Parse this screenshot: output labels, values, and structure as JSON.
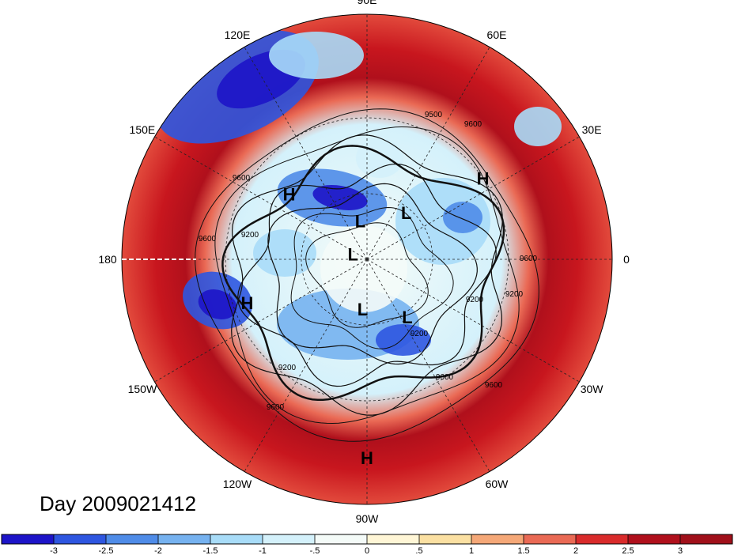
{
  "title": "Day 2009021412",
  "longitude_labels": [
    {
      "text": "90E",
      "lon": 90
    },
    {
      "text": "60E",
      "lon": 60
    },
    {
      "text": "30E",
      "lon": 30
    },
    {
      "text": "0",
      "lon": 0
    },
    {
      "text": "30W",
      "lon": -30
    },
    {
      "text": "60W",
      "lon": -60
    },
    {
      "text": "90W",
      "lon": -90
    },
    {
      "text": "120W",
      "lon": -120
    },
    {
      "text": "150W",
      "lon": -150
    },
    {
      "text": "180",
      "lon": 180
    },
    {
      "text": "150E",
      "lon": 150
    },
    {
      "text": "120E",
      "lon": 120
    }
  ],
  "pressure_systems": [
    {
      "type": "H",
      "lon": 140,
      "lat": 45
    },
    {
      "type": "H",
      "lon": 35,
      "lat": 30
    },
    {
      "type": "H",
      "lon": -160,
      "lat": 35
    },
    {
      "type": "H",
      "lon": -90,
      "lat": 12
    },
    {
      "type": "L",
      "lon": 100,
      "lat": 72
    },
    {
      "type": "L",
      "lon": 50,
      "lat": 62
    },
    {
      "type": "L",
      "lon": 160,
      "lat": 83
    },
    {
      "type": "L",
      "lon": -95,
      "lat": 67
    },
    {
      "type": "L",
      "lon": -55,
      "lat": 58
    }
  ],
  "contour_labels": [
    "9500",
    "9600",
    "9600",
    "9200",
    "9600",
    "9200",
    "9200",
    "9200",
    "9600",
    "9600",
    "9600",
    "9200",
    "9600"
  ],
  "colorbar": {
    "ticks": [
      "-3",
      "-2.5",
      "-2",
      "-1.5",
      "-1",
      "-.5",
      "0",
      ".5",
      "1",
      "1.5",
      "2",
      "2.5",
      "3"
    ],
    "colors": [
      "#1d14c8",
      "#2e56e0",
      "#4f8ce8",
      "#76b2f0",
      "#a8dcf8",
      "#d4f1fb",
      "#f4fbf8",
      "#fff6d6",
      "#fbe0a2",
      "#f5a878",
      "#ea6a55",
      "#d92b2b",
      "#b0101c",
      "#a0101a"
    ]
  }
}
